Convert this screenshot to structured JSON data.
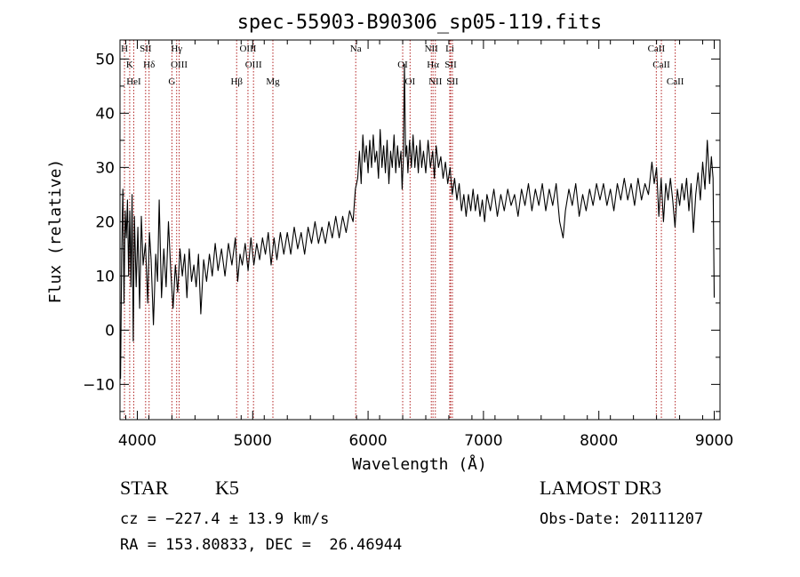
{
  "chart_data": {
    "type": "line",
    "title": "spec-55903-B90306_sp05-119.fits",
    "xlabel": "Wavelength (Å)",
    "ylabel": "Flux (relative)",
    "xlim": [
      3850,
      9050
    ],
    "ylim": [
      -16.5,
      53.5
    ],
    "xticks": [
      4000,
      5000,
      6000,
      7000,
      8000,
      9000
    ],
    "yticks": [
      -10,
      0,
      10,
      20,
      30,
      40,
      50
    ],
    "grid": false,
    "series": [
      {
        "color": "#000000",
        "points": [
          [
            3855,
            -9
          ],
          [
            3865,
            14
          ],
          [
            3875,
            26
          ],
          [
            3885,
            5
          ],
          [
            3895,
            22
          ],
          [
            3905,
            17
          ],
          [
            3915,
            24
          ],
          [
            3925,
            10
          ],
          [
            3935,
            22
          ],
          [
            3945,
            8
          ],
          [
            3955,
            25
          ],
          [
            3965,
            -2
          ],
          [
            3975,
            21
          ],
          [
            3990,
            8
          ],
          [
            4005,
            19
          ],
          [
            4020,
            4
          ],
          [
            4035,
            21
          ],
          [
            4050,
            12
          ],
          [
            4070,
            16
          ],
          [
            4090,
            5
          ],
          [
            4105,
            18
          ],
          [
            4120,
            13
          ],
          [
            4140,
            1
          ],
          [
            4160,
            14
          ],
          [
            4175,
            9
          ],
          [
            4190,
            24
          ],
          [
            4210,
            6
          ],
          [
            4230,
            15
          ],
          [
            4250,
            8
          ],
          [
            4270,
            20
          ],
          [
            4290,
            11
          ],
          [
            4310,
            4
          ],
          [
            4330,
            12
          ],
          [
            4350,
            7
          ],
          [
            4370,
            15
          ],
          [
            4390,
            10
          ],
          [
            4410,
            14
          ],
          [
            4430,
            6
          ],
          [
            4450,
            15
          ],
          [
            4470,
            9
          ],
          [
            4490,
            12
          ],
          [
            4510,
            8
          ],
          [
            4530,
            14
          ],
          [
            4550,
            3
          ],
          [
            4575,
            13
          ],
          [
            4600,
            9
          ],
          [
            4625,
            14
          ],
          [
            4650,
            10
          ],
          [
            4675,
            16
          ],
          [
            4700,
            11
          ],
          [
            4730,
            15
          ],
          [
            4760,
            10
          ],
          [
            4790,
            16
          ],
          [
            4820,
            12
          ],
          [
            4850,
            17
          ],
          [
            4870,
            9
          ],
          [
            4890,
            14
          ],
          [
            4910,
            12
          ],
          [
            4935,
            16
          ],
          [
            4960,
            11
          ],
          [
            4985,
            17
          ],
          [
            5010,
            12
          ],
          [
            5035,
            16
          ],
          [
            5060,
            13
          ],
          [
            5085,
            17
          ],
          [
            5110,
            14
          ],
          [
            5135,
            18
          ],
          [
            5160,
            12
          ],
          [
            5185,
            17
          ],
          [
            5210,
            13
          ],
          [
            5240,
            18
          ],
          [
            5270,
            14
          ],
          [
            5300,
            18
          ],
          [
            5330,
            14
          ],
          [
            5360,
            19
          ],
          [
            5390,
            15
          ],
          [
            5420,
            18
          ],
          [
            5450,
            14
          ],
          [
            5480,
            19
          ],
          [
            5510,
            16
          ],
          [
            5540,
            20
          ],
          [
            5570,
            16
          ],
          [
            5600,
            19
          ],
          [
            5630,
            16
          ],
          [
            5660,
            20
          ],
          [
            5690,
            17
          ],
          [
            5720,
            21
          ],
          [
            5750,
            17
          ],
          [
            5780,
            21
          ],
          [
            5810,
            18
          ],
          [
            5840,
            22
          ],
          [
            5870,
            20
          ],
          [
            5890,
            26
          ],
          [
            5910,
            28
          ],
          [
            5925,
            33
          ],
          [
            5940,
            27
          ],
          [
            5955,
            36
          ],
          [
            5970,
            31
          ],
          [
            5985,
            34
          ],
          [
            6000,
            29
          ],
          [
            6015,
            35
          ],
          [
            6030,
            30
          ],
          [
            6045,
            36
          ],
          [
            6060,
            31
          ],
          [
            6075,
            33
          ],
          [
            6090,
            28
          ],
          [
            6105,
            37
          ],
          [
            6120,
            30
          ],
          [
            6135,
            34
          ],
          [
            6150,
            29
          ],
          [
            6165,
            35
          ],
          [
            6180,
            27
          ],
          [
            6195,
            33
          ],
          [
            6210,
            30
          ],
          [
            6225,
            36
          ],
          [
            6240,
            29
          ],
          [
            6255,
            34
          ],
          [
            6270,
            30
          ],
          [
            6285,
            33
          ],
          [
            6295,
            26
          ],
          [
            6305,
            31
          ],
          [
            6315,
            49
          ],
          [
            6325,
            32
          ],
          [
            6335,
            34
          ],
          [
            6345,
            29
          ],
          [
            6360,
            35
          ],
          [
            6375,
            30
          ],
          [
            6390,
            36
          ],
          [
            6405,
            30
          ],
          [
            6420,
            34
          ],
          [
            6435,
            29
          ],
          [
            6450,
            35
          ],
          [
            6465,
            30
          ],
          [
            6480,
            33
          ],
          [
            6500,
            29
          ],
          [
            6520,
            35
          ],
          [
            6540,
            30
          ],
          [
            6560,
            33
          ],
          [
            6575,
            28
          ],
          [
            6590,
            34
          ],
          [
            6610,
            30
          ],
          [
            6630,
            32
          ],
          [
            6650,
            28
          ],
          [
            6670,
            31
          ],
          [
            6690,
            27
          ],
          [
            6710,
            30
          ],
          [
            6730,
            25
          ],
          [
            6750,
            28
          ],
          [
            6770,
            24
          ],
          [
            6790,
            27
          ],
          [
            6810,
            22
          ],
          [
            6830,
            25
          ],
          [
            6850,
            21
          ],
          [
            6870,
            25
          ],
          [
            6890,
            22
          ],
          [
            6910,
            26
          ],
          [
            6930,
            22
          ],
          [
            6950,
            25
          ],
          [
            6970,
            21
          ],
          [
            6990,
            24
          ],
          [
            7010,
            20
          ],
          [
            7030,
            25
          ],
          [
            7060,
            22
          ],
          [
            7090,
            26
          ],
          [
            7120,
            21
          ],
          [
            7150,
            25
          ],
          [
            7180,
            22
          ],
          [
            7210,
            26
          ],
          [
            7240,
            23
          ],
          [
            7270,
            25
          ],
          [
            7300,
            21
          ],
          [
            7330,
            26
          ],
          [
            7360,
            23
          ],
          [
            7390,
            27
          ],
          [
            7420,
            22
          ],
          [
            7450,
            26
          ],
          [
            7480,
            23
          ],
          [
            7510,
            27
          ],
          [
            7540,
            22
          ],
          [
            7570,
            26
          ],
          [
            7600,
            23
          ],
          [
            7630,
            27
          ],
          [
            7660,
            20
          ],
          [
            7690,
            17
          ],
          [
            7710,
            22
          ],
          [
            7740,
            26
          ],
          [
            7770,
            23
          ],
          [
            7800,
            27
          ],
          [
            7830,
            21
          ],
          [
            7860,
            25
          ],
          [
            7890,
            22
          ],
          [
            7920,
            26
          ],
          [
            7950,
            23
          ],
          [
            7980,
            27
          ],
          [
            8010,
            24
          ],
          [
            8040,
            27
          ],
          [
            8070,
            23
          ],
          [
            8100,
            26
          ],
          [
            8130,
            22
          ],
          [
            8160,
            27
          ],
          [
            8190,
            24
          ],
          [
            8220,
            28
          ],
          [
            8250,
            24
          ],
          [
            8280,
            27
          ],
          [
            8310,
            23
          ],
          [
            8340,
            28
          ],
          [
            8370,
            24
          ],
          [
            8400,
            27
          ],
          [
            8430,
            25
          ],
          [
            8460,
            31
          ],
          [
            8480,
            27
          ],
          [
            8500,
            30
          ],
          [
            8520,
            21
          ],
          [
            8540,
            28
          ],
          [
            8560,
            20
          ],
          [
            8580,
            27
          ],
          [
            8600,
            24
          ],
          [
            8620,
            28
          ],
          [
            8640,
            24
          ],
          [
            8660,
            19
          ],
          [
            8680,
            26
          ],
          [
            8700,
            23
          ],
          [
            8720,
            27
          ],
          [
            8740,
            24
          ],
          [
            8760,
            28
          ],
          [
            8780,
            22
          ],
          [
            8800,
            27
          ],
          [
            8820,
            18
          ],
          [
            8840,
            25
          ],
          [
            8860,
            29
          ],
          [
            8880,
            24
          ],
          [
            8900,
            31
          ],
          [
            8920,
            26
          ],
          [
            8940,
            35
          ],
          [
            8960,
            27
          ],
          [
            8975,
            32
          ],
          [
            8990,
            28
          ],
          [
            9000,
            6
          ]
        ]
      }
    ],
    "line_markers": [
      {
        "x": 3889,
        "labels": [
          "H"
        ]
      },
      {
        "x": 3934,
        "labels": [
          "K"
        ]
      },
      {
        "x": 3969,
        "labels": [
          "HeI"
        ]
      },
      {
        "x": 4072,
        "labels": [
          "SII"
        ]
      },
      {
        "x": 4102,
        "labels": [
          "Hδ"
        ]
      },
      {
        "x": 4300,
        "labels": [
          "G"
        ]
      },
      {
        "x": 4341,
        "labels": [
          "Hγ"
        ]
      },
      {
        "x": 4363,
        "labels": [
          "OIII"
        ]
      },
      {
        "x": 4861,
        "labels": [
          "Hβ"
        ]
      },
      {
        "x": 4959,
        "labels": [
          "OIII"
        ]
      },
      {
        "x": 5007,
        "labels": [
          "OIII"
        ]
      },
      {
        "x": 5175,
        "labels": [
          "Mg"
        ]
      },
      {
        "x": 5893,
        "labels": [
          "Na"
        ]
      },
      {
        "x": 6300,
        "labels": [
          "OI"
        ]
      },
      {
        "x": 6364,
        "labels": [
          "OI"
        ]
      },
      {
        "x": 6548,
        "labels": [
          "NII"
        ]
      },
      {
        "x": 6563,
        "labels": [
          "Hα"
        ]
      },
      {
        "x": 6583,
        "labels": [
          "NII"
        ]
      },
      {
        "x": 6708,
        "labels": [
          "Li"
        ]
      },
      {
        "x": 6716,
        "labels": [
          "SII"
        ]
      },
      {
        "x": 6731,
        "labels": [
          "SII"
        ]
      },
      {
        "x": 8498,
        "labels": [
          "CaII"
        ]
      },
      {
        "x": 8542,
        "labels": [
          "CaII"
        ]
      },
      {
        "x": 8662,
        "labels": [
          "CaII"
        ]
      }
    ]
  },
  "footer": {
    "star_class": "STAR",
    "star_subclass": "K5",
    "survey": "LAMOST DR3",
    "cz": "cz = −227.4 ± 13.9 km/s",
    "obs_date": "Obs-Date: 20111207",
    "ra_dec": "RA = 153.80833, DEC =  26.46944"
  }
}
